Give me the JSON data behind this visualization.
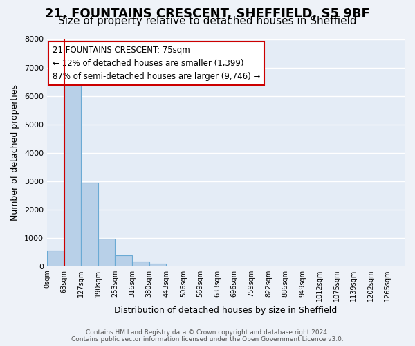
{
  "title1": "21, FOUNTAINS CRESCENT, SHEFFIELD, S5 9BF",
  "title2": "Size of property relative to detached houses in Sheffield",
  "xlabel": "Distribution of detached houses by size in Sheffield",
  "ylabel": "Number of detached properties",
  "bar_values": [
    550,
    6380,
    2930,
    970,
    380,
    170,
    90,
    0,
    0,
    0,
    0,
    0,
    0,
    0,
    0,
    0,
    0,
    0,
    0,
    0
  ],
  "bar_labels": [
    "0sqm",
    "63sqm",
    "127sqm",
    "190sqm",
    "253sqm",
    "316sqm",
    "380sqm",
    "443sqm",
    "506sqm",
    "569sqm",
    "633sqm",
    "696sqm",
    "759sqm",
    "822sqm",
    "886sqm",
    "949sqm",
    "1012sqm",
    "1075sqm",
    "1139sqm",
    "1202sqm"
  ],
  "x_tick_labels": [
    "0sqm",
    "63sqm",
    "127sqm",
    "190sqm",
    "253sqm",
    "316sqm",
    "380sqm",
    "443sqm",
    "506sqm",
    "569sqm",
    "633sqm",
    "696sqm",
    "759sqm",
    "822sqm",
    "886sqm",
    "949sqm",
    "1012sqm",
    "1075sqm",
    "1139sqm",
    "1202sqm",
    "1265sqm"
  ],
  "bar_color": "#b8d0e8",
  "bar_edge_color": "#6aaad4",
  "vline_x": 1,
  "vline_color": "#cc0000",
  "ylim": [
    0,
    8000
  ],
  "yticks": [
    0,
    1000,
    2000,
    3000,
    4000,
    5000,
    6000,
    7000,
    8000
  ],
  "annotation_title": "21 FOUNTAINS CRESCENT: 75sqm",
  "annotation_line1": "← 12% of detached houses are smaller (1,399)",
  "annotation_line2": "87% of semi-detached houses are larger (9,746) →",
  "footer1": "Contains HM Land Registry data © Crown copyright and database right 2024.",
  "footer2": "Contains public sector information licensed under the Open Government Licence v3.0.",
  "bg_color": "#eef2f8",
  "plot_bg_color": "#e4ecf6",
  "grid_color": "#ffffff",
  "title1_fontsize": 13,
  "title2_fontsize": 11
}
